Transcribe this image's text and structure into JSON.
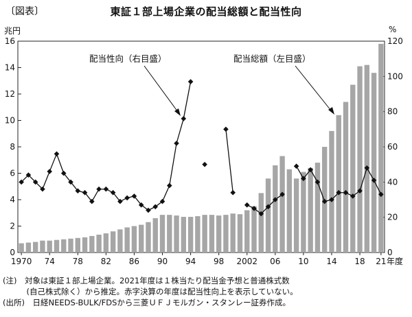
{
  "header": {
    "tag": "〔図表〕",
    "title": "東証１部上場企業の配当総額と配当性向"
  },
  "units": {
    "left": "兆円",
    "right": "%"
  },
  "notes": [
    "(注)　対象は東証１部上場企業。2021年度は１株当たり配当金予想と普通株式数",
    "　　　(自己株式除く）から推定。赤字決算の年度は配当性向上を表示していない。",
    "(出所)　日経NEEDS-BULK/FDSから三菱ＵＦＪモルガン・スタンレー証券作成。"
  ],
  "chart_data": {
    "type": "bar+line",
    "title": "東証１部上場企業の配当総額と配当性向",
    "xlabel": "年度",
    "x": [
      1970,
      1971,
      1972,
      1973,
      1974,
      1975,
      1976,
      1977,
      1978,
      1979,
      1980,
      1981,
      1982,
      1983,
      1984,
      1985,
      1986,
      1987,
      1988,
      1989,
      1990,
      1991,
      1992,
      1993,
      1994,
      1995,
      1996,
      1997,
      1998,
      1999,
      2000,
      2001,
      2002,
      2003,
      2004,
      2005,
      2006,
      2007,
      2008,
      2009,
      2010,
      2011,
      2012,
      2013,
      2014,
      2015,
      2016,
      2017,
      2018,
      2019,
      2020,
      2021
    ],
    "x_tick_labels": [
      "1970",
      "74",
      "78",
      "82",
      "86",
      "90",
      "94",
      "98",
      "2002",
      "06",
      "10",
      "14",
      "18",
      "21"
    ],
    "x_tick_years": [
      1970,
      1974,
      1978,
      1982,
      1986,
      1990,
      1994,
      1998,
      2002,
      2006,
      2010,
      2014,
      2018,
      2021
    ],
    "y_left": {
      "unit": "兆円",
      "ylim": [
        0,
        16
      ],
      "ticks": [
        0,
        2,
        4,
        6,
        8,
        10,
        12,
        14,
        16
      ]
    },
    "y_right": {
      "unit": "%",
      "ylim": [
        0,
        120
      ],
      "ticks": [
        0,
        20,
        40,
        60,
        80,
        100,
        120
      ]
    },
    "series": [
      {
        "name": "配当総額（左目盛）",
        "kind": "bar",
        "axis": "left",
        "color": "#a6a6a6",
        "values": [
          0.7,
          0.75,
          0.8,
          0.9,
          0.9,
          0.95,
          1.0,
          1.05,
          1.1,
          1.15,
          1.25,
          1.35,
          1.45,
          1.6,
          1.75,
          1.9,
          2.0,
          2.1,
          2.3,
          2.6,
          2.85,
          2.85,
          2.8,
          2.7,
          2.7,
          2.75,
          2.85,
          2.85,
          2.8,
          2.85,
          2.95,
          2.9,
          3.2,
          3.5,
          4.5,
          5.6,
          6.6,
          7.3,
          6.3,
          5.6,
          6.1,
          6.4,
          6.8,
          8.0,
          9.2,
          10.4,
          11.4,
          12.7,
          14.1,
          14.2,
          13.6,
          15.8
        ]
      },
      {
        "name": "配当性向（右目盛）",
        "kind": "line",
        "axis": "right",
        "color": "#111111",
        "values": [
          40,
          44,
          40,
          36,
          46,
          56,
          45,
          40,
          35,
          34,
          29,
          36,
          36,
          34,
          29,
          31,
          32,
          27,
          24,
          26,
          29,
          38,
          62,
          76,
          97,
          null,
          50,
          null,
          null,
          70,
          34,
          null,
          27,
          25,
          22,
          26,
          30,
          33,
          null,
          49,
          42,
          47,
          40,
          29,
          30,
          34,
          34,
          32,
          35,
          48,
          41,
          33
        ]
      }
    ],
    "annotations": [
      {
        "text": "配当性向（右目盛）"
      },
      {
        "text": "配当総額（左目盛）"
      }
    ]
  }
}
